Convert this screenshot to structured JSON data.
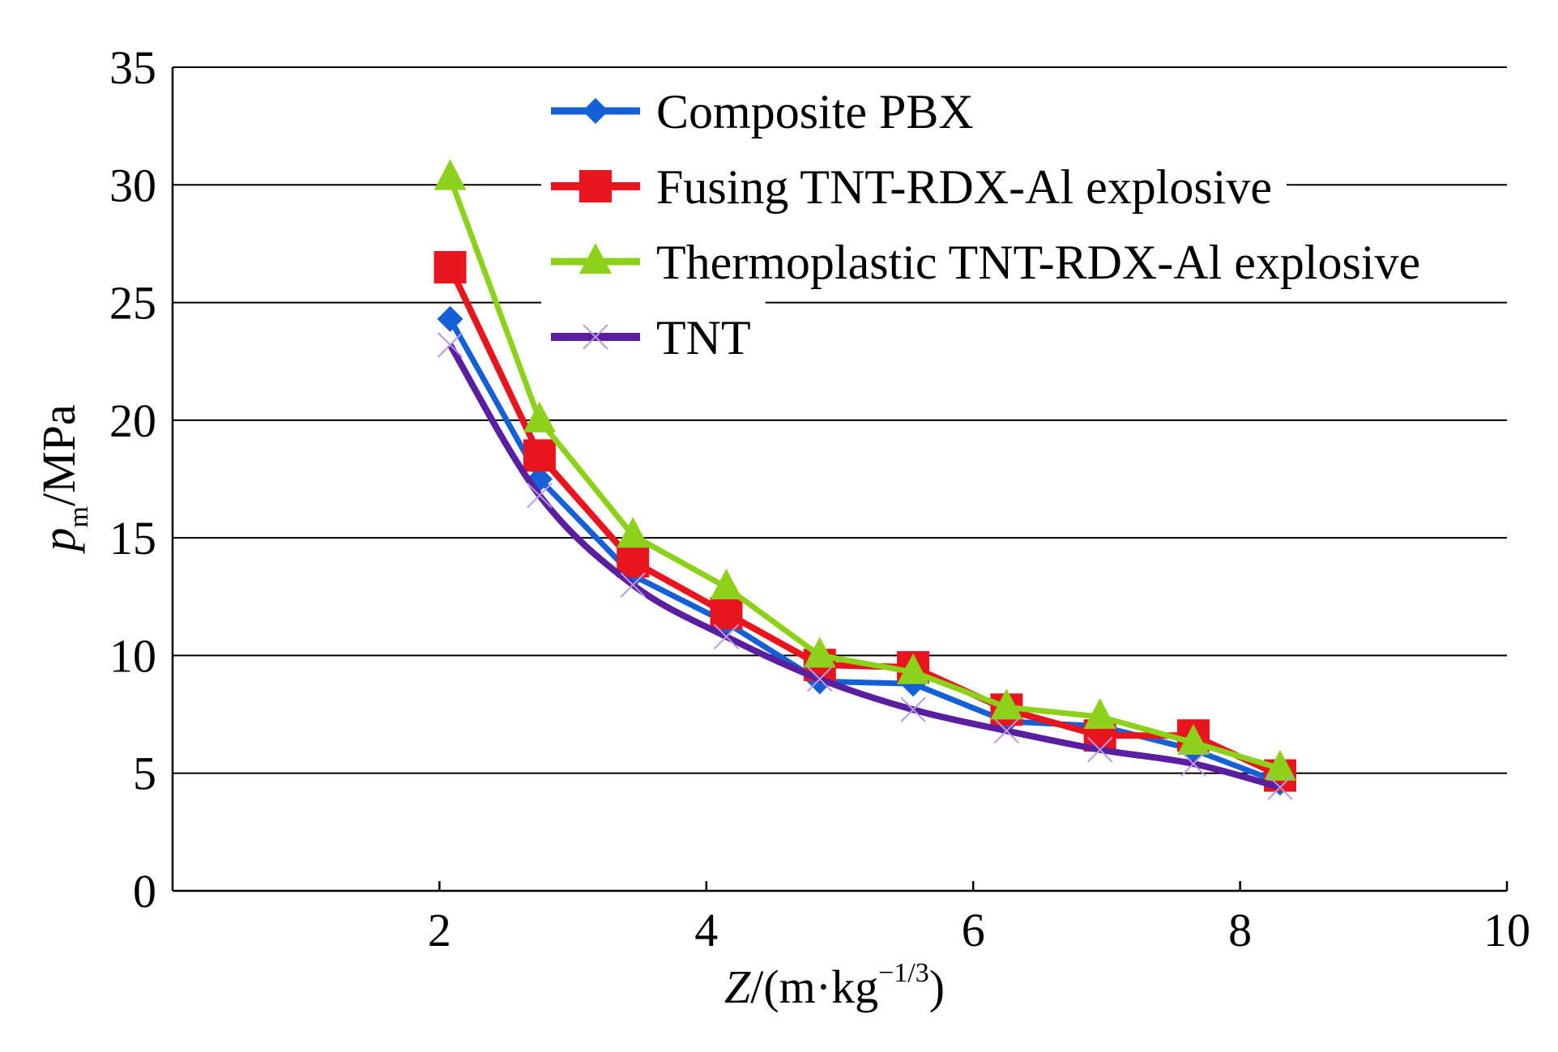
{
  "chart_data": {
    "type": "line",
    "title": "",
    "xlabel": {
      "italic": "Z",
      "text": "/(m·kg",
      "sup": "−1/3",
      "tail": ")"
    },
    "ylabel": {
      "italic": "p",
      "sub": "m",
      "text": "/MPa"
    },
    "xlim": [
      0,
      10
    ],
    "ylim": [
      0,
      35
    ],
    "xticks": [
      2,
      4,
      6,
      8,
      10
    ],
    "yticks": [
      0,
      5,
      10,
      15,
      20,
      25,
      30,
      35
    ],
    "grid": "horizontal",
    "legend_position": "top-right",
    "x": [
      2.08,
      2.75,
      3.45,
      4.15,
      4.85,
      5.55,
      6.25,
      6.95,
      7.65,
      8.3
    ],
    "series": [
      {
        "name": "Composite PBX",
        "color": "#1560d6",
        "marker": "diamond",
        "values": [
          24.3,
          17.5,
          13.4,
          11.4,
          8.9,
          8.8,
          7.2,
          7.0,
          6.0,
          4.6
        ]
      },
      {
        "name": "Fusing TNT-RDX-Al explosive",
        "color": "#e8141e",
        "marker": "square",
        "values": [
          26.5,
          18.5,
          14.0,
          11.8,
          9.6,
          9.5,
          7.7,
          6.6,
          6.6,
          4.9
        ]
      },
      {
        "name": "Thermoplastic TNT-RDX-Al explosive",
        "color": "#8cd21a",
        "marker": "triangle",
        "values": [
          30.3,
          20.0,
          15.1,
          12.9,
          10.0,
          9.3,
          7.8,
          7.4,
          6.3,
          5.2
        ]
      },
      {
        "name": "TNT",
        "color": "#5a1ea0",
        "marker": "x",
        "values": [
          23.2,
          16.8,
          13.0,
          10.8,
          9.0,
          7.7,
          6.8,
          6.0,
          5.4,
          4.4
        ]
      }
    ]
  }
}
